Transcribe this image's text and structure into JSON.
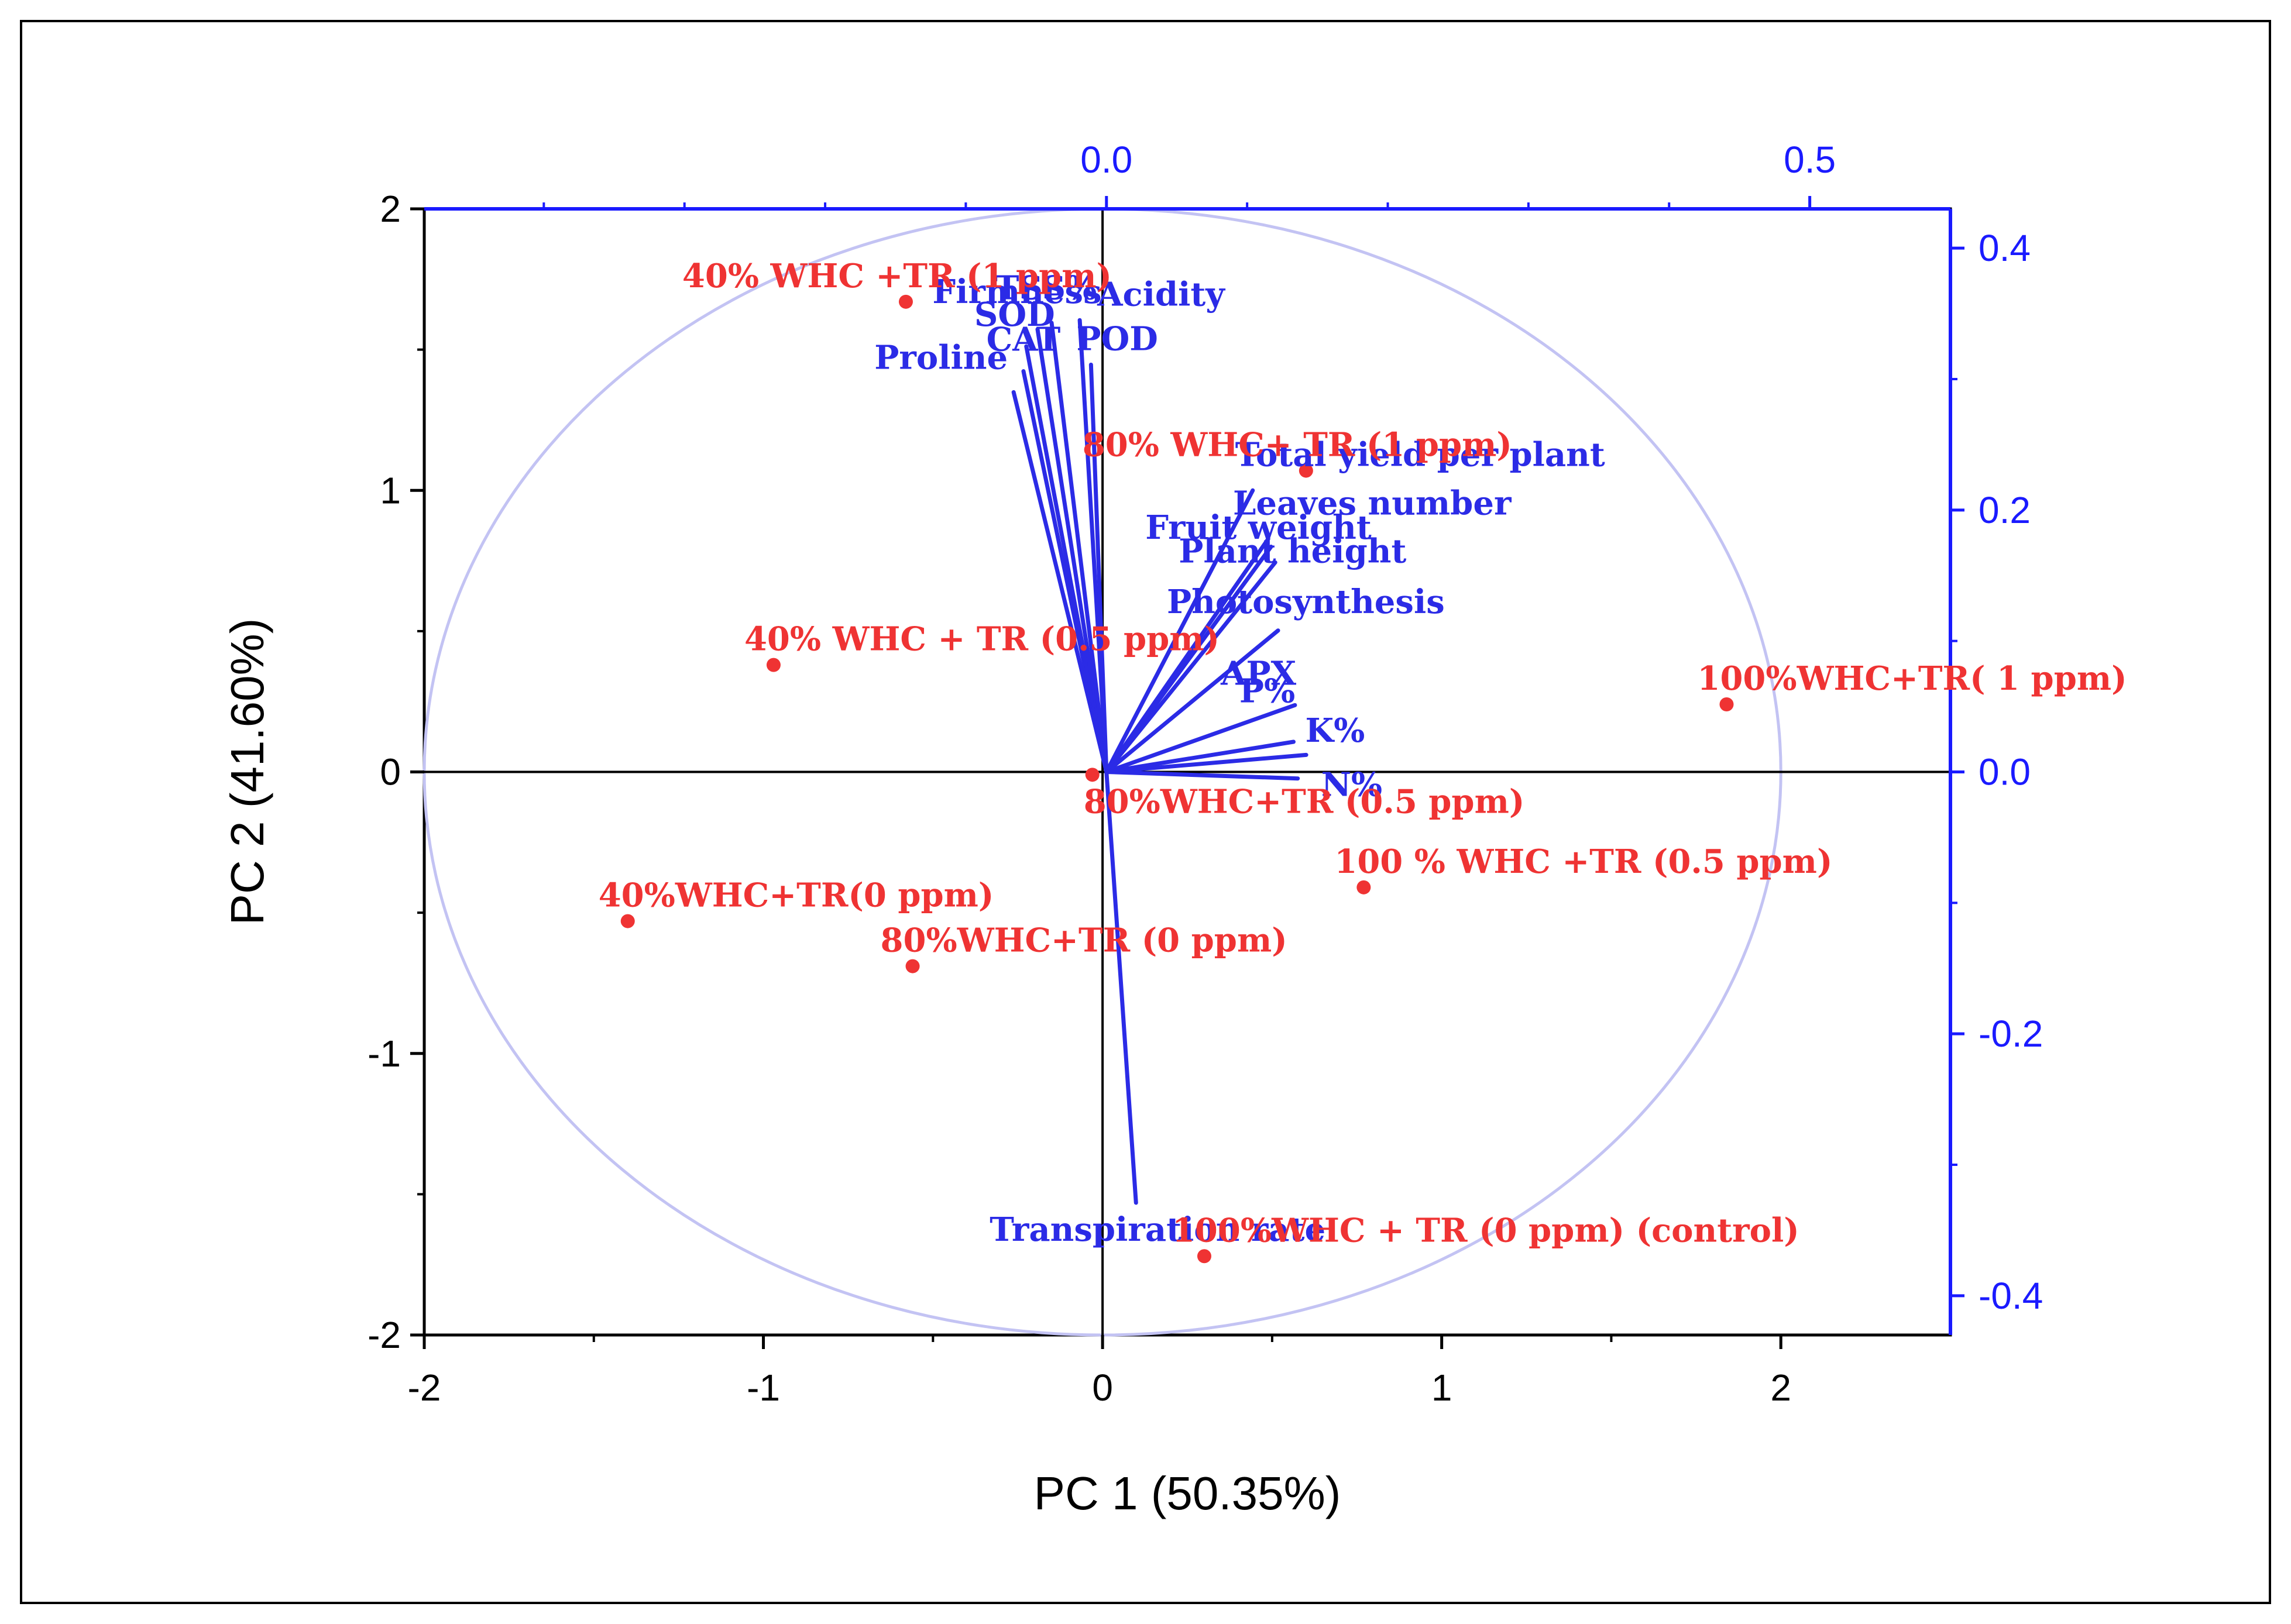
{
  "chart_data": {
    "type": "scatter",
    "subtype": "pca-biplot",
    "title": "",
    "xlabel": "PC 1 (50.35%)",
    "ylabel": "PC 2 (41.60%)",
    "xlim": [
      -2,
      2.5
    ],
    "ylim": [
      -2,
      2
    ],
    "x_ticks": [
      -2,
      -1,
      0,
      1,
      2
    ],
    "y_ticks": [
      -2,
      -1,
      0,
      1,
      2
    ],
    "x_tick_labels": [
      "-2",
      "-1",
      "0",
      "1",
      "2"
    ],
    "y_tick_labels": [
      "-2",
      "-1",
      "0",
      "1",
      "2"
    ],
    "loading_xlim": [
      -0.485,
      0.6
    ],
    "loading_ylim": [
      -0.43,
      0.43
    ],
    "loading_x_ticks": [
      0.0,
      0.5
    ],
    "loading_y_ticks": [
      -0.4,
      -0.2,
      0.0,
      0.2,
      0.4
    ],
    "loading_x_tick_labels": [
      "0.0",
      "0.5"
    ],
    "loading_y_tick_labels": [
      "-0.4",
      "-0.2",
      "0.0",
      "0.2",
      "0.4"
    ],
    "colors": {
      "observations": "#ef3333",
      "loadings": "#2b2be6",
      "circle": "#c3c3f3",
      "axes": "#000000",
      "secondary_axes": "#1a1aff"
    },
    "observations": [
      {
        "name": "40% WHC +TR (1 ppm)",
        "x": -0.58,
        "y": 1.67
      },
      {
        "name": "80% WHC+ TR (1 ppm)",
        "x": 0.6,
        "y": 1.07
      },
      {
        "name": "40% WHC + TR (0.5 ppm)",
        "x": -0.97,
        "y": 0.38
      },
      {
        "name": "100%WHC+TR( 1 ppm)",
        "x": 1.84,
        "y": 0.24
      },
      {
        "name": "80%WHC+TR (0.5 ppm)",
        "x": -0.03,
        "y": -0.01
      },
      {
        "name": "100 % WHC +TR (0.5 ppm)",
        "x": 0.77,
        "y": -0.41
      },
      {
        "name": "40%WHC+TR(0 ppm)",
        "x": -1.4,
        "y": -0.53
      },
      {
        "name": "80%WHC+TR (0 ppm)",
        "x": -0.56,
        "y": -0.69
      },
      {
        "name": "100%WHC + TR (0 ppm) (control)",
        "x": 0.3,
        "y": -1.72
      }
    ],
    "loadings": [
      {
        "name": "Proline",
        "x": -0.066,
        "y": 0.29
      },
      {
        "name": "CAT",
        "x": -0.059,
        "y": 0.306
      },
      {
        "name": "SOD",
        "x": -0.057,
        "y": 0.325
      },
      {
        "name": "Firmness",
        "x": -0.049,
        "y": 0.338
      },
      {
        "name": "TSS%",
        "x": -0.039,
        "y": 0.343
      },
      {
        "name": "Acidity",
        "x": -0.019,
        "y": 0.345
      },
      {
        "name": "POD",
        "x": -0.011,
        "y": 0.311
      },
      {
        "name": "Total yield per plant",
        "x": 0.104,
        "y": 0.215
      },
      {
        "name": "Fruit weight",
        "x": 0.115,
        "y": 0.178
      },
      {
        "name": "Leaves number",
        "x": 0.117,
        "y": 0.172
      },
      {
        "name": "Plant height",
        "x": 0.12,
        "y": 0.16
      },
      {
        "name": "Photosynthesis",
        "x": 0.122,
        "y": 0.108
      },
      {
        "name": "P%",
        "x": 0.134,
        "y": 0.051
      },
      {
        "name": "K%",
        "x": 0.133,
        "y": 0.023
      },
      {
        "name": "APX",
        "x": 0.142,
        "y": 0.013
      },
      {
        "name": "N%",
        "x": 0.136,
        "y": -0.005
      },
      {
        "name": "Transpiration rate",
        "x": 0.021,
        "y": -0.329
      }
    ]
  }
}
